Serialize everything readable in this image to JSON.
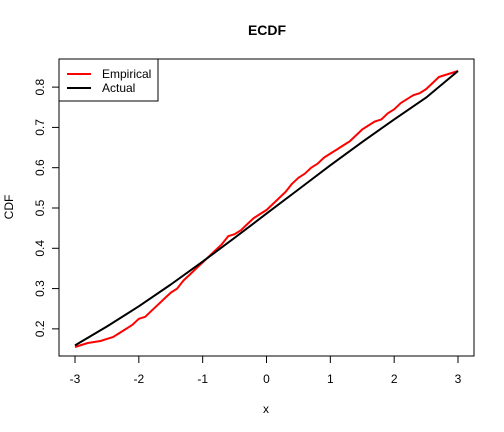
{
  "chart_data": {
    "type": "line",
    "title": "ECDF",
    "xlabel": "x",
    "ylabel": "CDF",
    "xlim": [
      -3,
      3
    ],
    "ylim": [
      0.155,
      0.84
    ],
    "x_ticks": [
      -3,
      -2,
      -1,
      0,
      1,
      2,
      3
    ],
    "y_ticks": [
      0.2,
      0.3,
      0.4,
      0.5,
      0.6,
      0.7,
      0.8
    ],
    "grid": false,
    "legend_position": "top-left",
    "series": [
      {
        "name": "Empirical",
        "color": "#ff0000",
        "x": [
          -3.0,
          -2.8,
          -2.6,
          -2.5,
          -2.4,
          -2.3,
          -2.2,
          -2.1,
          -2.0,
          -1.9,
          -1.8,
          -1.7,
          -1.6,
          -1.5,
          -1.4,
          -1.3,
          -1.2,
          -1.1,
          -1.0,
          -0.9,
          -0.8,
          -0.7,
          -0.6,
          -0.5,
          -0.4,
          -0.3,
          -0.2,
          -0.1,
          0.0,
          0.1,
          0.2,
          0.3,
          0.4,
          0.5,
          0.6,
          0.7,
          0.8,
          0.9,
          1.0,
          1.1,
          1.2,
          1.3,
          1.4,
          1.5,
          1.6,
          1.7,
          1.8,
          1.9,
          2.0,
          2.1,
          2.2,
          2.3,
          2.4,
          2.5,
          2.6,
          2.7,
          2.8,
          2.9,
          3.0
        ],
        "y": [
          0.155,
          0.165,
          0.17,
          0.175,
          0.18,
          0.19,
          0.2,
          0.21,
          0.225,
          0.23,
          0.245,
          0.26,
          0.275,
          0.29,
          0.3,
          0.32,
          0.335,
          0.35,
          0.365,
          0.38,
          0.395,
          0.41,
          0.43,
          0.435,
          0.445,
          0.46,
          0.475,
          0.485,
          0.495,
          0.51,
          0.525,
          0.54,
          0.56,
          0.575,
          0.585,
          0.6,
          0.61,
          0.625,
          0.635,
          0.645,
          0.655,
          0.665,
          0.68,
          0.695,
          0.705,
          0.715,
          0.72,
          0.735,
          0.745,
          0.76,
          0.77,
          0.78,
          0.785,
          0.795,
          0.81,
          0.825,
          0.83,
          0.835,
          0.84
        ]
      },
      {
        "name": "Actual",
        "color": "#000000",
        "x": [
          -3.0,
          -2.5,
          -2.0,
          -1.5,
          -1.0,
          -0.5,
          0.0,
          0.5,
          1.0,
          1.5,
          2.0,
          2.5,
          3.0
        ],
        "y": [
          0.159,
          0.206,
          0.256,
          0.31,
          0.367,
          0.426,
          0.486,
          0.546,
          0.606,
          0.664,
          0.72,
          0.774,
          0.84
        ]
      }
    ]
  }
}
